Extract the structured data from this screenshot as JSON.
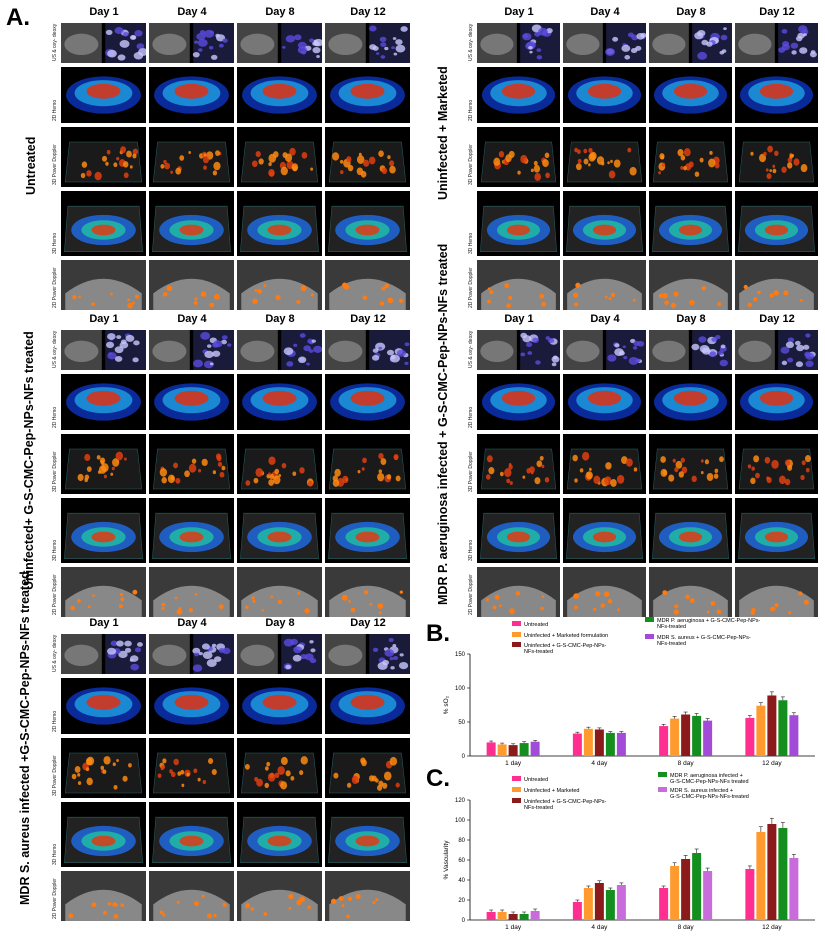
{
  "panel_labels": {
    "a": "A.",
    "b": "B.",
    "c": "C."
  },
  "days": [
    "Day 1",
    "Day 4",
    "Day 8",
    "Day 12"
  ],
  "row_labels": [
    "US & oxy- deoxy",
    "2D Hemo",
    "3D Power Doppler",
    "3D Hemo",
    "2D Power Doppler"
  ],
  "groups": [
    "Untreated",
    "Uninfected + Marketed",
    "Uninfected+ G-S-CMC-Pep-NPs-NFs treated",
    "MDR P. aeruginosa infected + G-S-CMC-Pep-NPs-NFs treated",
    "MDR S. aureus infected +G-S-CMC-Pep-NPs-NFs treated"
  ],
  "colors": {
    "untreated": "#ff2f92",
    "marketed": "#ff9a2e",
    "uninfected_treated": "#8b1a1a",
    "pa": "#148f1f",
    "sa": "#a24bd9",
    "sa_c": "#c86bdb"
  },
  "chart_data": [
    {
      "type": "bar",
      "categories": [
        "1 day",
        "4 day",
        "8 day",
        "12 day"
      ],
      "series": [
        {
          "name": "Untreated",
          "values": [
            20,
            33,
            44,
            56
          ]
        },
        {
          "name": "Uninfected + Marketed formulation",
          "values": [
            17,
            40,
            55,
            74
          ]
        },
        {
          "name": "Uninfected + G-S-CMC-Pep-NPs-NFs-treated",
          "values": [
            16,
            39,
            61,
            89
          ]
        },
        {
          "name": "MDR P. aeruginosa + G-S-CMC-Pep-NPs-NFs-treated",
          "values": [
            19,
            34,
            59,
            82
          ]
        },
        {
          "name": "MDR S. aureus + G-S-CMC-Pep-NPs-NFs-treated",
          "values": [
            21,
            34,
            52,
            60
          ]
        }
      ],
      "ylabel": "% sO₂",
      "ylim": [
        0,
        150
      ],
      "yticks": [
        "0",
        "50",
        "100",
        "150"
      ]
    },
    {
      "type": "bar",
      "categories": [
        "1 day",
        "4 day",
        "8 day",
        "12 day"
      ],
      "series": [
        {
          "name": "Untreated",
          "values": [
            8,
            18,
            32,
            51
          ]
        },
        {
          "name": "Uninfected + Marketed",
          "values": [
            8,
            32,
            54,
            88
          ]
        },
        {
          "name": "Uninfected + G-S-CMC-Pep-NPs-NFs-treated",
          "values": [
            6,
            37,
            61,
            96
          ]
        },
        {
          "name": "MDR P. aeruginosa infected + G-S-CMC-Pep-NPs-NFs treated",
          "values": [
            6,
            30,
            67,
            92
          ]
        },
        {
          "name": "MDR S. aureus infected + G-S-CMC-Pep-NPs-NFs-treated",
          "values": [
            9,
            35,
            49,
            62
          ]
        }
      ],
      "ylabel": "% Vascularity",
      "ylim": [
        0,
        120
      ],
      "yticks": [
        "0",
        "20",
        "40",
        "60",
        "80",
        "100",
        "120"
      ]
    }
  ]
}
